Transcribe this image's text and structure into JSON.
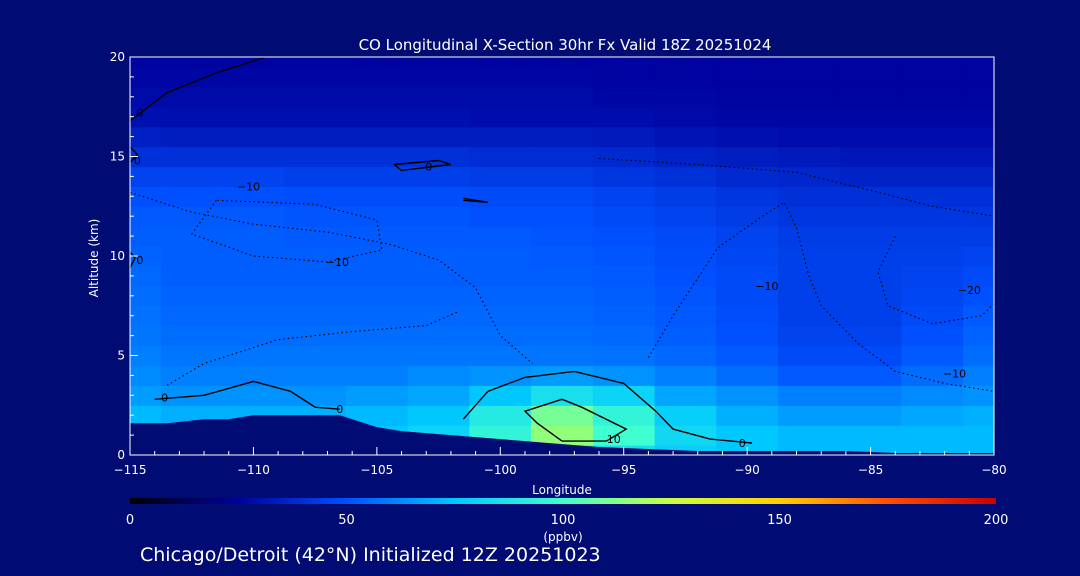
{
  "page": {
    "background": "#000b73",
    "footer": "Chicago/Detroit (42°N) Initialized 12Z 20251023"
  },
  "chart_data": {
    "type": "heatmap",
    "title": "CO Longitudinal X-Section 30hr  Fx Valid 18Z 20251024",
    "xlabel": "Longitude",
    "ylabel": "Altitude (km)",
    "xlim": [
      -115,
      -80
    ],
    "ylim": [
      0,
      20
    ],
    "x_ticks": [
      -115,
      -110,
      -105,
      -100,
      -95,
      -90,
      -85,
      -80
    ],
    "y_ticks": [
      0,
      5,
      10,
      15,
      20
    ],
    "x_tick_labels": [
      "−115",
      "−110",
      "−105",
      "−100",
      "−95",
      "−90",
      "−85",
      "−80"
    ],
    "y_tick_labels": [
      "0",
      "5",
      "10",
      "15",
      "20"
    ],
    "colorbar": {
      "label": "(ppbv)",
      "range": [
        0,
        200
      ],
      "ticks": [
        0,
        50,
        100,
        150,
        200
      ],
      "tick_labels": [
        "0",
        "50",
        "100",
        "150",
        "200"
      ],
      "colors": [
        "#000000",
        "#00009c",
        "#0050ff",
        "#00c8ff",
        "#40ffd0",
        "#c8ff40",
        "#ffd000",
        "#ff5000",
        "#c80000"
      ]
    },
    "lon": [
      -115,
      -112.5,
      -110,
      -107.5,
      -105,
      -102.5,
      -100,
      -97.5,
      -95,
      -92.5,
      -90,
      -87.5,
      -85,
      -82.5,
      -80
    ],
    "alt": [
      0,
      1,
      2,
      3,
      4,
      5,
      6,
      7,
      8,
      9,
      10,
      11,
      12,
      13,
      14,
      15,
      16,
      17,
      18,
      19,
      20
    ],
    "co_ppbv": [
      [
        75,
        75,
        75,
        75,
        75,
        82,
        85,
        88,
        85,
        78,
        75,
        72,
        72,
        72,
        72
      ],
      [
        75,
        75,
        75,
        75,
        75,
        80,
        95,
        115,
        100,
        82,
        75,
        72,
        72,
        72,
        72
      ],
      [
        72,
        70,
        70,
        70,
        72,
        75,
        90,
        110,
        95,
        78,
        70,
        66,
        66,
        68,
        70
      ],
      [
        66,
        64,
        64,
        64,
        66,
        68,
        75,
        85,
        80,
        68,
        64,
        60,
        60,
        62,
        64
      ],
      [
        62,
        60,
        60,
        60,
        60,
        62,
        64,
        66,
        64,
        60,
        56,
        52,
        52,
        56,
        60
      ],
      [
        60,
        58,
        58,
        58,
        58,
        58,
        58,
        58,
        57,
        55,
        52,
        48,
        48,
        52,
        56
      ],
      [
        58,
        56,
        56,
        56,
        56,
        56,
        56,
        56,
        55,
        53,
        50,
        46,
        46,
        50,
        54
      ],
      [
        57,
        55,
        55,
        55,
        55,
        55,
        55,
        55,
        54,
        52,
        49,
        45,
        45,
        48,
        52
      ],
      [
        56,
        54,
        54,
        54,
        54,
        54,
        54,
        54,
        53,
        51,
        48,
        45,
        45,
        47,
        50
      ],
      [
        55,
        53,
        53,
        53,
        53,
        53,
        53,
        53,
        52,
        50,
        48,
        45,
        45,
        46,
        48
      ],
      [
        54,
        53,
        53,
        53,
        53,
        53,
        53,
        52,
        51,
        49,
        47,
        45,
        45,
        45,
        46
      ],
      [
        53,
        53,
        53,
        52,
        52,
        52,
        52,
        51,
        50,
        48,
        46,
        44,
        44,
        44,
        44
      ],
      [
        52,
        52,
        52,
        51,
        51,
        51,
        50,
        50,
        48,
        46,
        44,
        42,
        42,
        42,
        42
      ],
      [
        50,
        50,
        50,
        49,
        49,
        49,
        48,
        48,
        46,
        44,
        42,
        40,
        40,
        40,
        40
      ],
      [
        46,
        46,
        46,
        45,
        45,
        45,
        44,
        44,
        42,
        40,
        38,
        37,
        36,
        36,
        36
      ],
      [
        40,
        40,
        40,
        40,
        40,
        40,
        39,
        39,
        38,
        36,
        34,
        33,
        32,
        32,
        32
      ],
      [
        35,
        34,
        34,
        34,
        34,
        34,
        34,
        34,
        33,
        31,
        30,
        29,
        29,
        29,
        29
      ],
      [
        30,
        30,
        30,
        30,
        30,
        30,
        29,
        29,
        29,
        28,
        27,
        27,
        27,
        27,
        27
      ],
      [
        28,
        28,
        28,
        28,
        28,
        28,
        28,
        28,
        27,
        27,
        26,
        26,
        26,
        26,
        26
      ],
      [
        27,
        27,
        27,
        27,
        27,
        27,
        27,
        27,
        26,
        26,
        26,
        26,
        26,
        26,
        26
      ],
      [
        26,
        26,
        26,
        26,
        26,
        26,
        26,
        26,
        26,
        26,
        26,
        26,
        26,
        26,
        26
      ]
    ],
    "terrain": {
      "lon": [
        -115,
        -113.5,
        -112,
        -111,
        -110,
        -108,
        -106.5,
        -105,
        -104,
        -102,
        -100,
        -98,
        -96,
        -94,
        -92,
        -90,
        -88,
        -86,
        -84,
        -82,
        -80
      ],
      "alt_km": [
        1.6,
        1.6,
        1.8,
        1.8,
        2.0,
        2.0,
        2.0,
        1.4,
        1.2,
        1.0,
        0.8,
        0.6,
        0.4,
        0.3,
        0.2,
        0.2,
        0.2,
        0.2,
        0.1,
        0.1,
        0.1
      ]
    },
    "contour_labels": [
      "0",
      "0",
      "0",
      "0",
      "0",
      "0",
      "0",
      "−10",
      "−10",
      "−10",
      "−10",
      "−20",
      "10"
    ]
  }
}
